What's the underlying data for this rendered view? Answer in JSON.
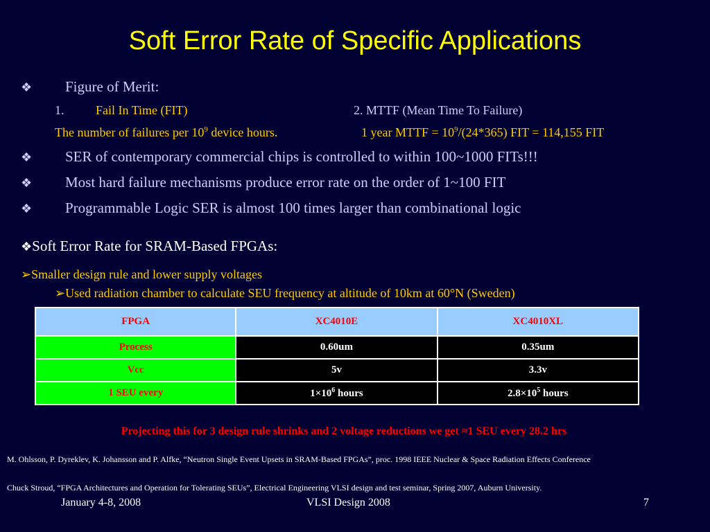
{
  "title": "Soft Error Rate of Specific Applications",
  "bullet_symbol": "❖",
  "arrow_symbol": "➢",
  "figure_of_merit": {
    "heading": "Figure of Merit:",
    "item1_num": "1.",
    "item1_label": "Fail In Time (FIT)",
    "item2_label": "2. MTTF (Mean Time To Failure)",
    "item1_desc_pre": "The number of failures per 10",
    "item1_desc_sup": "9",
    "item1_desc_post": " device hours.",
    "item2_desc_pre": "1 year MTTF = 10",
    "item2_desc_sup": "9",
    "item2_desc_post": "/(24*365) FIT = 114,155 FIT"
  },
  "bullets": [
    "SER of contemporary commercial chips is controlled to within 100~1000 FITs!!!",
    "Most hard failure mechanisms produce error rate on the order of 1~100 FIT",
    "Programmable Logic SER is almost 100 times larger than combinational logic"
  ],
  "fpga_section": {
    "heading": "Soft Error Rate for SRAM-Based FPGAs:",
    "sub1": "Smaller design rule and lower supply voltages",
    "sub2": "Used radiation chamber to calculate SEU frequency at altitude of 10km at 60°N (Sweden)"
  },
  "table": {
    "headers": [
      "FPGA",
      "XC4010E",
      "XC4010XL"
    ],
    "rows": [
      {
        "label": "Process",
        "v1": "0.60um",
        "v2": "0.35um"
      },
      {
        "label": "Vcc",
        "v1": "5v",
        "v2": "3.3v"
      },
      {
        "label": "1 SEU every",
        "v1_pre": "1×10",
        "v1_sup": "6",
        "v1_post": " hours",
        "v2_pre": "2.8×10",
        "v2_sup": "5",
        "v2_post": " hours"
      }
    ]
  },
  "projection": "Projecting this for 3 design rule shrinks and 2 voltage reductions we get ≈1 SEU every 28.2 hrs",
  "references": [
    "M. Ohlsson, P. Dyreklev, K. Johansson and P. Alfke, “Neutron Single Event Upsets in SRAM-Based FPGAs”, proc. 1998 IEEE Nuclear & Space Radiation Effects Conference",
    "Chuck Stroud, “FPGA Architectures and Operation for Tolerating SEUs”, Electrical Engineering VLSI design and test seminar, Spring 2007, Auburn University."
  ],
  "footer": {
    "date": "January 4-8, 2008",
    "venue": "VLSI Design 2008",
    "page": "7"
  },
  "colors": {
    "background": "#000033",
    "title": "#ffff00",
    "bullet_text": "#ccccff",
    "subtext": "#ffcc00",
    "header_fill": "#99ccff",
    "label_fill": "#00ff00",
    "red": "#ff0000"
  }
}
